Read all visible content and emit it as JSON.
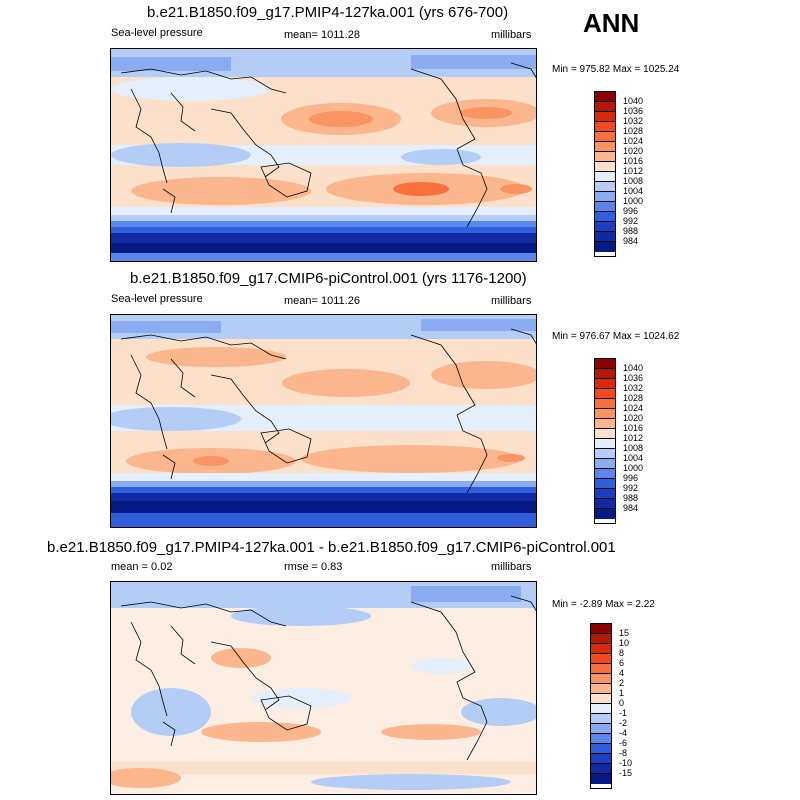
{
  "season": "ANN",
  "colorbars": {
    "sst_fill": [
      "#8b0000",
      "#b11a09",
      "#d9290b",
      "#f24a1d",
      "#f8713c",
      "#fa9462",
      "#fcb68e",
      "#fde0c9",
      "#e5eefb",
      "#b3cdf6",
      "#8aadf2",
      "#5b87ec",
      "#2f5fdd",
      "#1b3fc1",
      "#0f2aa3",
      "#061a86"
    ],
    "sst_labels": [
      "1040",
      "1036",
      "1032",
      "1028",
      "1024",
      "1020",
      "1016",
      "1012",
      "1008",
      "1004",
      "1000",
      "996",
      "992",
      "988",
      "984"
    ],
    "diff_fill": [
      "#8b0000",
      "#b11a09",
      "#d9290b",
      "#f24a1d",
      "#f8713c",
      "#fa9462",
      "#fcb68e",
      "#fde0c9",
      "#e5eefb",
      "#b3cdf6",
      "#8aadf2",
      "#5b87ec",
      "#2f5fdd",
      "#1b3fc1",
      "#0f2aa3",
      "#061a86"
    ],
    "diff_labels": [
      "15",
      "10",
      "8",
      "6",
      "4",
      "2",
      "1",
      "0",
      "-1",
      "-2",
      "-4",
      "-6",
      "-8",
      "-10",
      "-15"
    ]
  },
  "panels": [
    {
      "title": "b.e21.B1850.f09_g17.PMIP4-127ka.001 (yrs 676-700)",
      "left_label": "Sea-level pressure",
      "center_label": "mean= 1011.28",
      "right_label": "millibars",
      "minmax": "Min = 975.82 Max = 1025.24"
    },
    {
      "title": "b.e21.B1850.f09_g17.CMIP6-piControl.001 (yrs 1176-1200)",
      "left_label": "Sea-level pressure",
      "center_label": "mean= 1011.26",
      "right_label": "millibars",
      "minmax": "Min = 976.67 Max = 1024.62"
    },
    {
      "title": "b.e21.B1850.f09_g17.PMIP4-127ka.001 - b.e21.B1850.f09_g17.CMIP6-piControl.001",
      "left_label": "mean =  0.02",
      "center_label": "rmse =  0.83",
      "right_label": "millibars",
      "minmax": "Min =  -2.89 Max =   2.22"
    }
  ]
}
